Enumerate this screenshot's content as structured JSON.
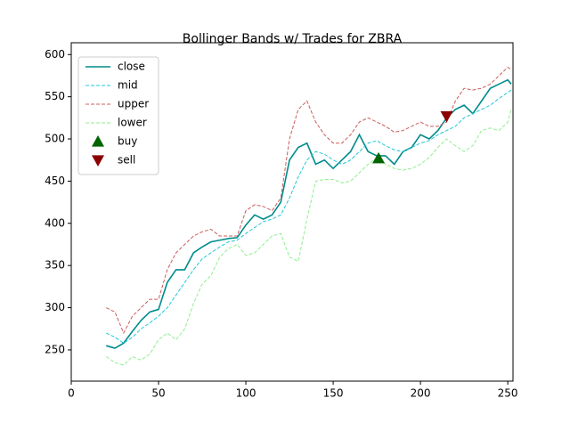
{
  "chart_data": {
    "type": "line",
    "title": "Bollinger Bands w/ Trades for ZBRA",
    "x": [
      20,
      25,
      30,
      35,
      40,
      45,
      50,
      55,
      60,
      65,
      70,
      75,
      80,
      85,
      90,
      95,
      100,
      105,
      110,
      115,
      120,
      125,
      130,
      135,
      140,
      145,
      150,
      155,
      160,
      165,
      170,
      175,
      180,
      185,
      190,
      195,
      200,
      205,
      210,
      215,
      220,
      225,
      230,
      235,
      240,
      245,
      250,
      252
    ],
    "series": [
      {
        "name": "close",
        "color": "#008b8b",
        "style": "solid",
        "values": [
          255,
          252,
          258,
          272,
          285,
          295,
          298,
          330,
          345,
          345,
          365,
          372,
          378,
          380,
          382,
          383,
          398,
          410,
          405,
          410,
          425,
          475,
          490,
          495,
          470,
          475,
          465,
          475,
          485,
          505,
          485,
          480,
          480,
          470,
          485,
          490,
          505,
          500,
          510,
          525,
          535,
          540,
          530,
          545,
          560,
          565,
          570,
          565
        ]
      },
      {
        "name": "mid",
        "color": "#1ec8d8",
        "style": "dashed",
        "values": [
          270,
          265,
          258,
          265,
          275,
          282,
          290,
          300,
          315,
          330,
          345,
          358,
          365,
          372,
          378,
          380,
          388,
          395,
          402,
          405,
          410,
          430,
          455,
          475,
          485,
          482,
          475,
          470,
          475,
          485,
          495,
          498,
          492,
          487,
          485,
          490,
          495,
          498,
          505,
          510,
          515,
          525,
          530,
          535,
          540,
          548,
          555,
          558
        ]
      },
      {
        "name": "upper",
        "color": "#cd5c5c",
        "style": "dashed",
        "values": [
          300,
          295,
          270,
          290,
          300,
          310,
          310,
          345,
          365,
          375,
          385,
          390,
          393,
          385,
          385,
          385,
          415,
          422,
          420,
          415,
          430,
          500,
          535,
          545,
          520,
          505,
          495,
          495,
          505,
          520,
          525,
          520,
          515,
          508,
          510,
          515,
          520,
          515,
          515,
          520,
          545,
          560,
          558,
          560,
          565,
          575,
          585,
          582
        ]
      },
      {
        "name": "lower",
        "color": "#90ee90",
        "style": "dashed",
        "values": [
          242,
          235,
          232,
          242,
          238,
          245,
          262,
          270,
          262,
          275,
          305,
          328,
          338,
          360,
          370,
          375,
          362,
          365,
          375,
          385,
          388,
          360,
          355,
          405,
          450,
          452,
          452,
          448,
          450,
          460,
          470,
          478,
          470,
          465,
          463,
          465,
          470,
          478,
          490,
          500,
          492,
          485,
          492,
          510,
          513,
          510,
          520,
          535
        ]
      }
    ],
    "markers": [
      {
        "name": "buy",
        "color": "#006400",
        "shape": "up",
        "x": [
          176
        ],
        "values": [
          477
        ]
      },
      {
        "name": "sell",
        "color": "#8b0000",
        "shape": "down",
        "x": [
          215
        ],
        "values": [
          527
        ]
      }
    ],
    "xlim": [
      0,
      253
    ],
    "xticks": [
      0,
      50,
      100,
      150,
      200,
      250
    ],
    "ylim": [
      213,
      614
    ],
    "yticks": [
      250,
      300,
      350,
      400,
      450,
      500,
      550,
      600
    ],
    "legend": "upper-left"
  }
}
